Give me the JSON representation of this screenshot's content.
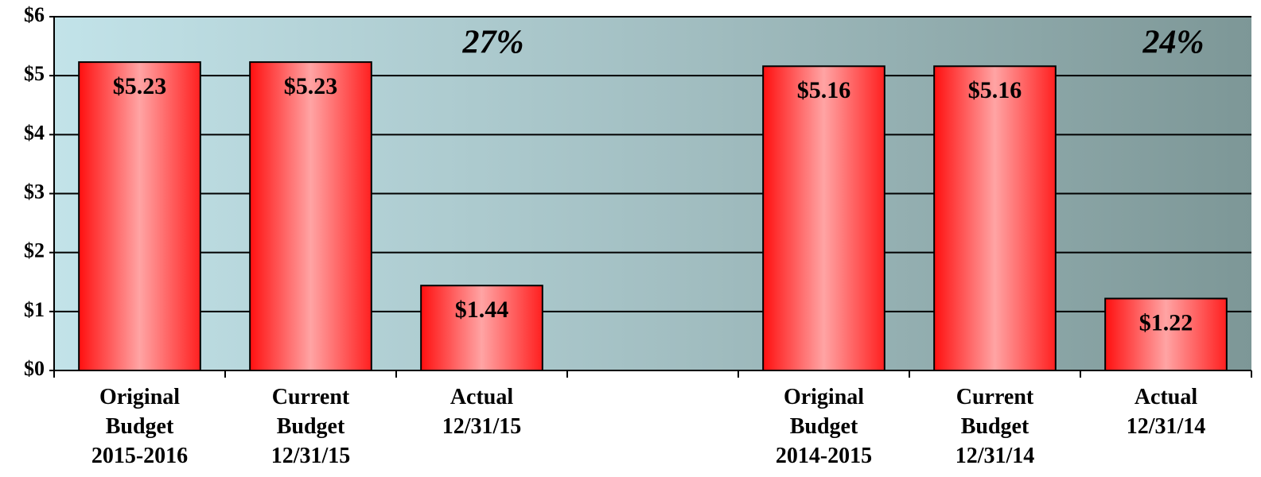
{
  "chart_data": {
    "type": "bar",
    "categories": [
      "Original Budget 2015-2016",
      "Current Budget 12/31/15",
      "Actual 12/31/15",
      null,
      "Original Budget 2014-2015",
      "Current Budget 12/31/14",
      "Actual 12/31/14"
    ],
    "values": [
      5.23,
      5.23,
      1.44,
      null,
      5.16,
      5.16,
      1.22
    ],
    "value_labels": [
      "$5.23",
      "$5.23",
      "$1.44",
      null,
      "$5.16",
      "$5.16",
      "$1.22"
    ],
    "color": "#ff2020",
    "ylim": [
      0,
      6
    ],
    "yticks": [
      {
        "value": 0,
        "label": "$0"
      },
      {
        "value": 1,
        "label": "$1"
      },
      {
        "value": 2,
        "label": "$2"
      },
      {
        "value": 3,
        "label": "$3"
      },
      {
        "value": 4,
        "label": "$4"
      },
      {
        "value": 5,
        "label": "$5"
      },
      {
        "value": 6,
        "label": "$6"
      }
    ],
    "grid": true,
    "annotations": [
      "27%",
      "24%"
    ]
  }
}
